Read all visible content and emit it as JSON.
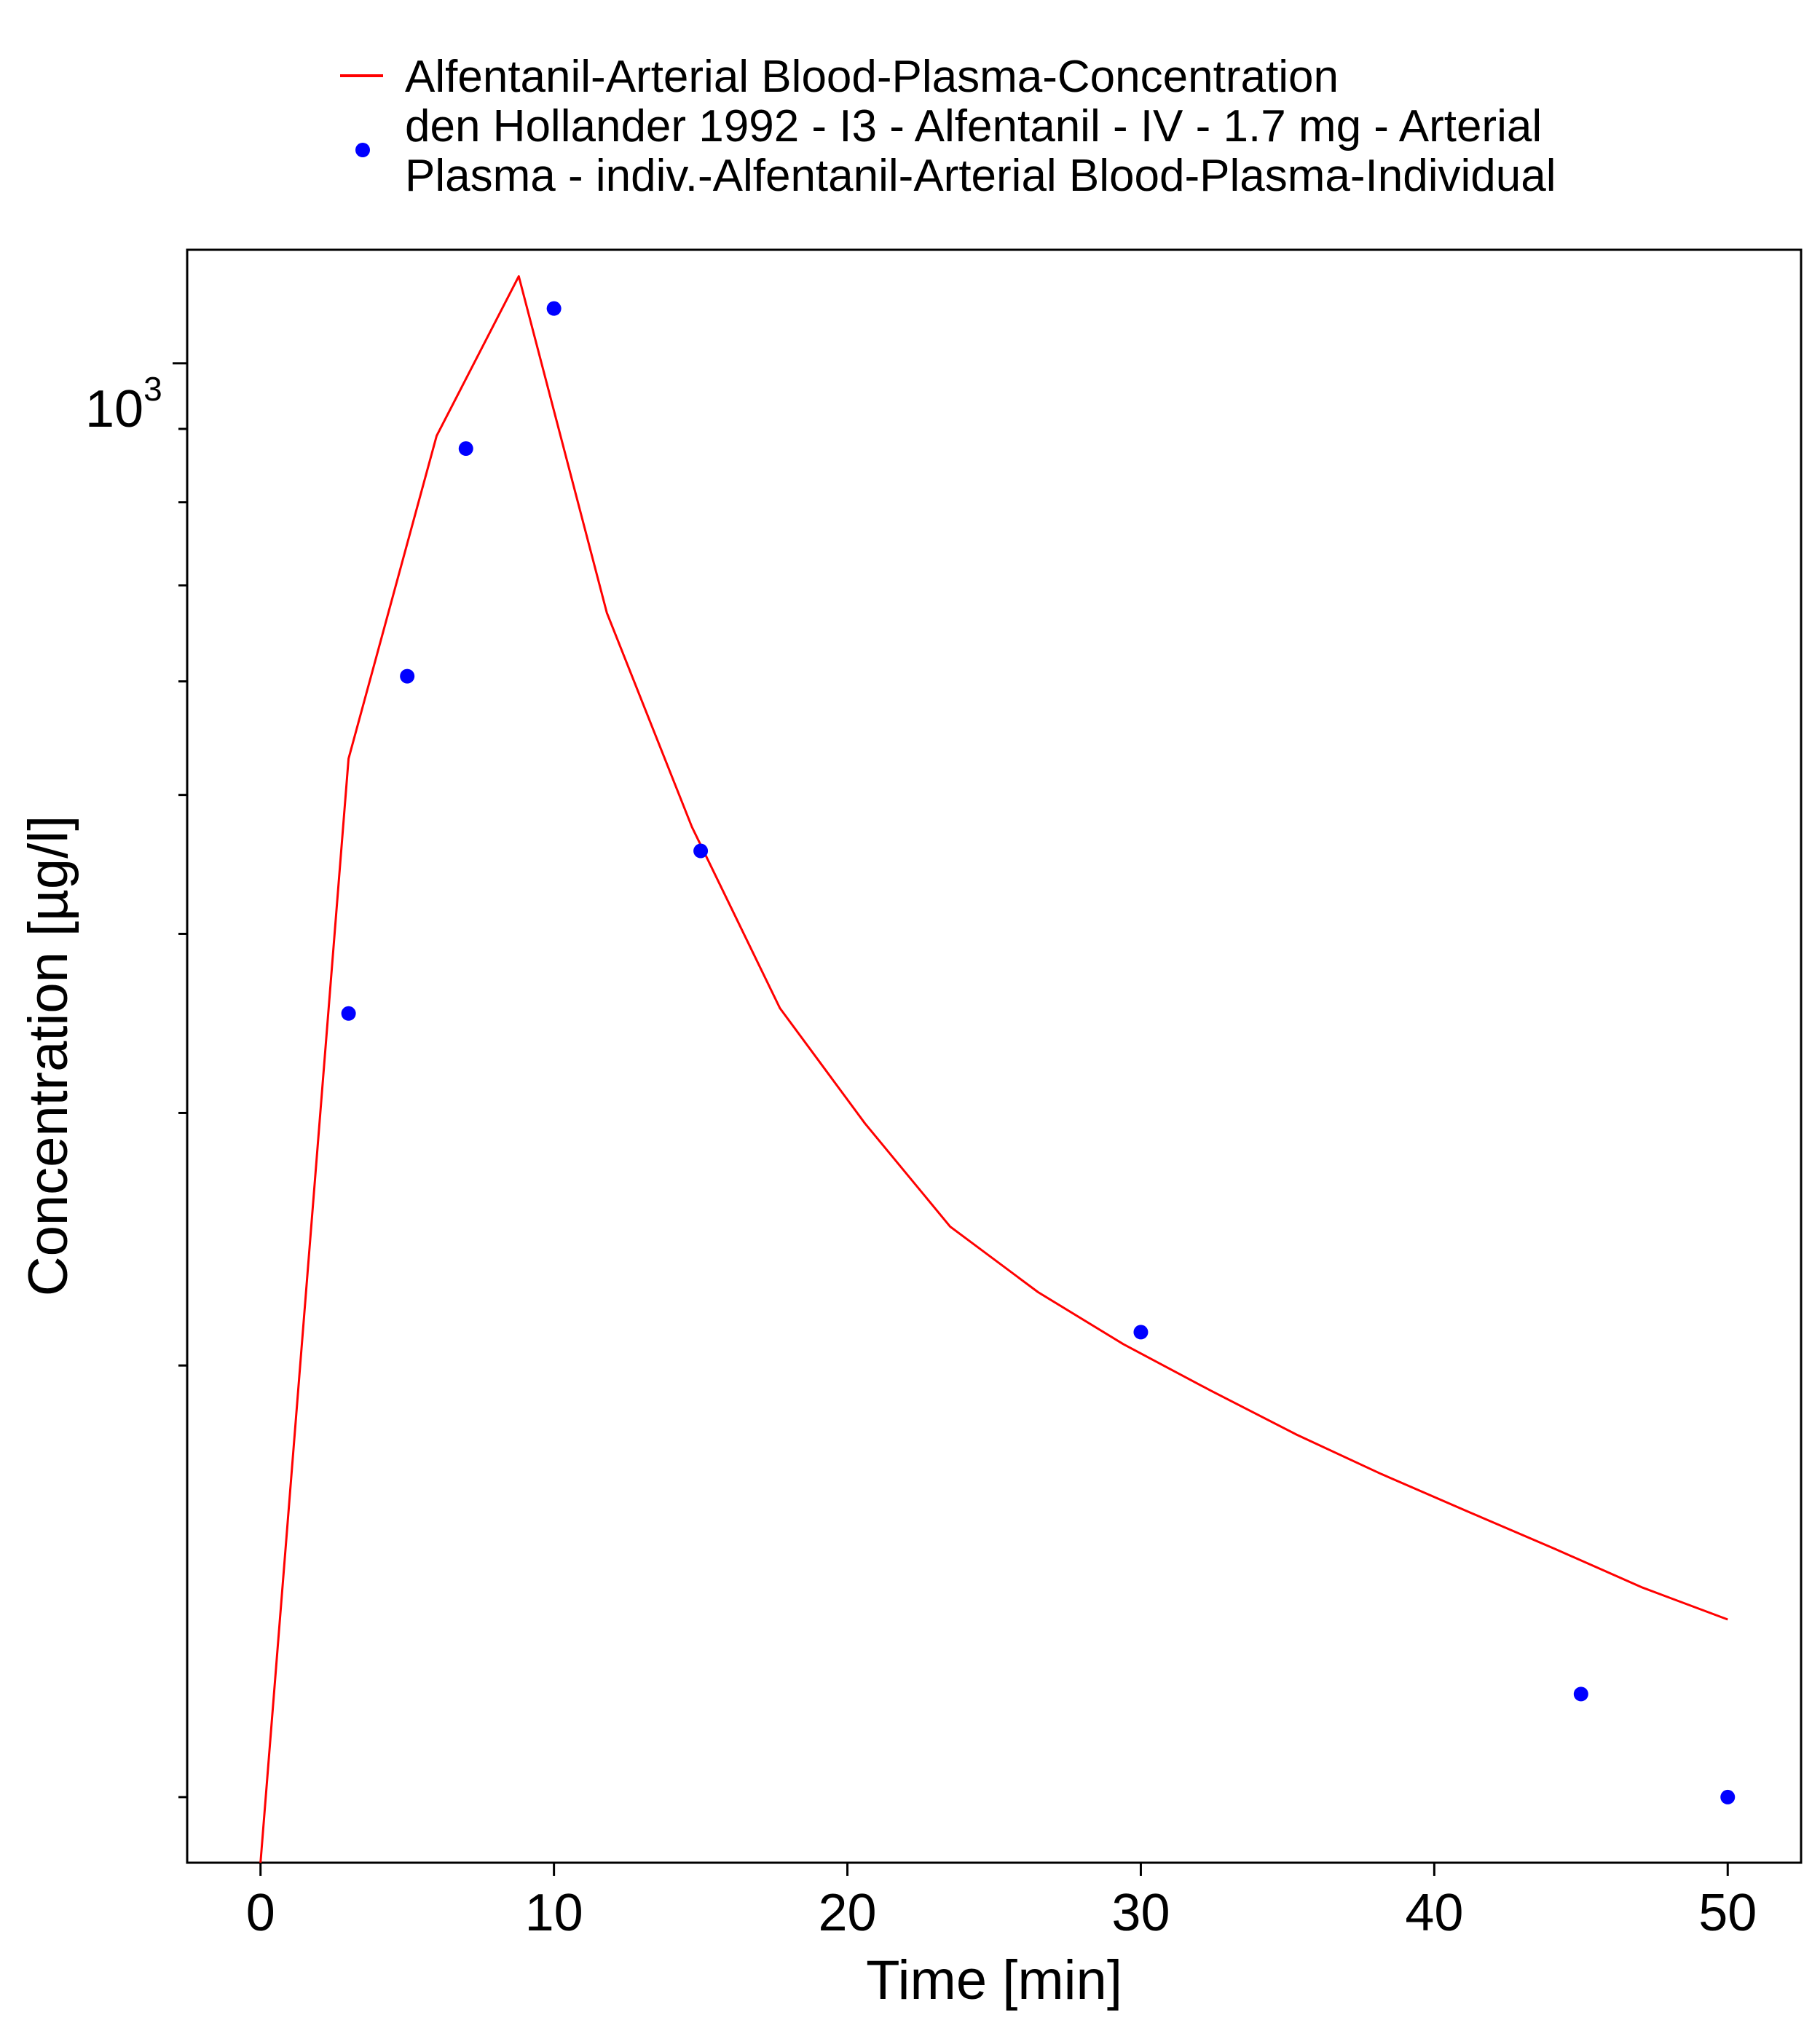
{
  "chart_data": {
    "type": "line",
    "xlabel": "Time [min]",
    "ylabel": "Concentration [µg/l]",
    "y_scale": "log",
    "xlim": [
      -2.5,
      52.5
    ],
    "ylim": [
      90,
      1200
    ],
    "x_ticks": [
      0,
      10,
      20,
      30,
      40,
      50
    ],
    "x_tick_labels": [
      "0",
      "10",
      "20",
      "30",
      "40",
      "50"
    ],
    "y_major_tick": {
      "value": 1000,
      "base": "10",
      "exponent": "3"
    },
    "y_minor_ticks": [
      900,
      800,
      700,
      600,
      500,
      400,
      300,
      200,
      100
    ],
    "grid": false,
    "legend_position": "top",
    "series": [
      {
        "name": "Alfentanil-Arterial Blood-Plasma-Concentration",
        "kind": "line",
        "color": "#ff0000",
        "x": [
          0,
          3,
          6,
          8.8,
          11.8,
          14.7,
          17.7,
          20.6,
          23.5,
          26.5,
          29.4,
          32.4,
          35.3,
          38.2,
          41.2,
          44.1,
          47.1,
          50
        ],
        "y": [
          90,
          530,
          890,
          1150,
          670,
          475,
          355,
          295,
          250,
          225,
          207,
          192,
          179,
          168,
          158,
          149,
          140,
          133
        ]
      },
      {
        "name": "den Hollander 1992 - I3 - Alfentanil - IV - 1.7 mg - Arterial Plasma - indiv.-Alfentanil-Arterial Blood-Plasma-Individual",
        "legend_lines": [
          "den Hollander 1992 - I3 - Alfentanil - IV - 1.7 mg - Arterial",
          "Plasma - indiv.-Alfentanil-Arterial Blood-Plasma-Individual"
        ],
        "kind": "scatter",
        "color": "#0000ff",
        "x": [
          3,
          5,
          7,
          10,
          15,
          30,
          45,
          50
        ],
        "y": [
          352,
          605,
          872,
          1092,
          457,
          211,
          118,
          100
        ]
      }
    ]
  }
}
